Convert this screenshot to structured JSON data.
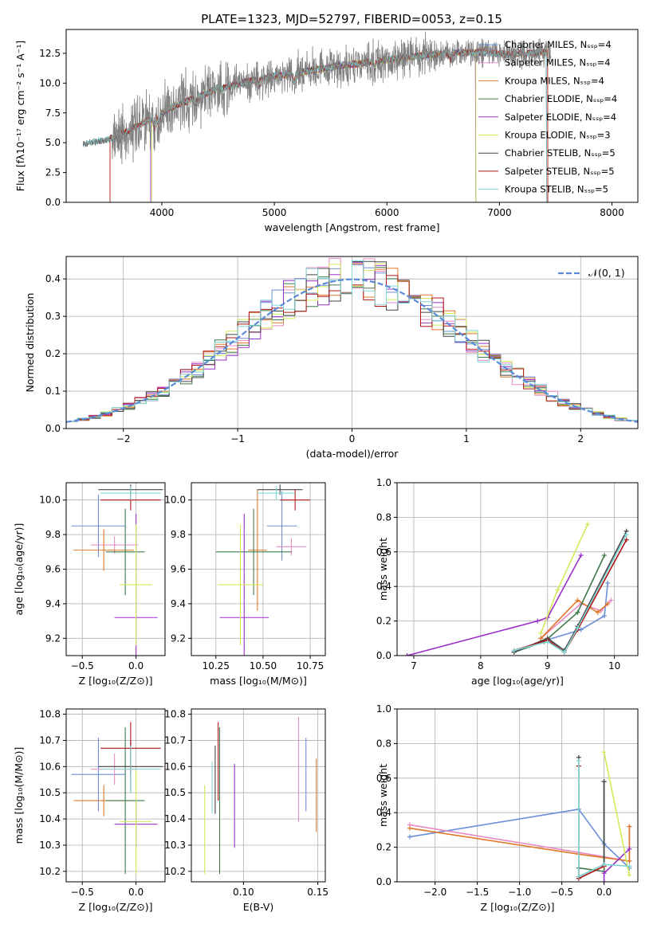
{
  "title": "PLATE=1323, MJD=52797, FIBERID=0053, z=0.15",
  "colors": {
    "Chabrier MILES": "#6a8fd8",
    "Salpeter MILES": "#e78ac3",
    "Kroupa MILES": "#e0782a",
    "Chabrier ELODIE": "#3f7a4b",
    "Salpeter ELODIE": "#9b30c8",
    "Kroupa ELODIE": "#d4e95a",
    "Chabrier STELIB": "#444444",
    "Salpeter STELIB": "#b01515",
    "Kroupa STELIB": "#7fd6d6",
    "data": "#808080",
    "gauss": "#5b8bd8"
  },
  "chart_data": [
    {
      "id": "spectrum",
      "type": "line",
      "xlabel": "wavelength [Angstrom, rest frame]",
      "ylabel": "Flux [fλ10⁻¹⁷ erg cm⁻² s⁻¹ A⁻¹]",
      "xlim": [
        3150,
        8230
      ],
      "ylim": [
        0,
        14.5
      ],
      "xticks": [
        "4000",
        "5000",
        "6000",
        "7000",
        "8000"
      ],
      "yticks": [
        "0.0",
        "2.5",
        "5.0",
        "7.5",
        "10.0",
        "12.5"
      ],
      "legend": [
        "Chabrier MILES, Nₛₛₚ=4",
        "Salpeter MILES, Nₛₛₚ=4",
        "Kroupa MILES, Nₛₛₚ=4",
        "Chabrier ELODIE, Nₛₛₚ=4",
        "Salpeter ELODIE, Nₛₛₚ=4",
        "Kroupa ELODIE, Nₛₛₚ=3",
        "Chabrier STELIB, Nₛₛₚ=5",
        "Salpeter STELIB, Nₛₛₚ=5",
        "Kroupa STELIB, Nₛₛₚ=5"
      ],
      "legend_placement": "upper right",
      "model_keypoints": [
        [
          3300,
          4.9
        ],
        [
          3500,
          5.2
        ],
        [
          3700,
          6.0
        ],
        [
          3900,
          7.0
        ],
        [
          4100,
          8.0
        ],
        [
          4400,
          9.2
        ],
        [
          4700,
          10.0
        ],
        [
          5000,
          10.6
        ],
        [
          5300,
          11.0
        ],
        [
          5600,
          11.5
        ],
        [
          5900,
          11.8
        ],
        [
          6200,
          12.2
        ],
        [
          6500,
          12.5
        ],
        [
          6800,
          12.6
        ],
        [
          7100,
          12.4
        ],
        [
          7400,
          12.6
        ]
      ]
    },
    {
      "id": "residuals",
      "type": "line",
      "xlabel": "(data-model)/error",
      "ylabel": "Normed distribution",
      "xlim": [
        -2.5,
        2.5
      ],
      "ylim": [
        0,
        0.46
      ],
      "xticks": [
        "−2",
        "−1",
        "0",
        "1",
        "2"
      ],
      "yticks": [
        "0.0",
        "0.1",
        "0.2",
        "0.3",
        "0.4"
      ],
      "legend": [
        "𝒩(0, 1)"
      ],
      "legend_placement": "upper right",
      "grid": true
    },
    {
      "id": "age_vs_Z",
      "type": "scatter",
      "xlabel": "Z [log₁₀(Z/Z⊙)]",
      "ylabel": "age  [log₁₀(age/yr)]",
      "xlim": [
        -0.65,
        0.27
      ],
      "ylim": [
        9.1,
        10.1
      ],
      "xticks": [
        "−0.5",
        "0.0"
      ],
      "yticks": [
        "9.2",
        "9.4",
        "9.6",
        "9.8",
        "10.0"
      ],
      "grid": true,
      "points": [
        {
          "m": "Chabrier MILES",
          "x": -0.35,
          "y": 9.85,
          "xerr": 0.25,
          "yerr": 0.18
        },
        {
          "m": "Salpeter MILES",
          "x": -0.2,
          "y": 9.74,
          "xerr": 0.22,
          "yerr": 0.05
        },
        {
          "m": "Kroupa MILES",
          "x": -0.3,
          "y": 9.71,
          "xerr": 0.28,
          "yerr": 0.12
        },
        {
          "m": "Chabrier ELODIE",
          "x": -0.1,
          "y": 9.7,
          "xerr": 0.18,
          "yerr": 0.25
        },
        {
          "m": "Salpeter ELODIE",
          "x": 0.0,
          "y": 9.32,
          "xerr": 0.2,
          "yerr": 0.6
        },
        {
          "m": "Kroupa ELODIE",
          "x": 0.0,
          "y": 9.51,
          "xerr": 0.15,
          "yerr": 0.35
        },
        {
          "m": "Chabrier STELIB",
          "x": -0.05,
          "y": 10.06,
          "xerr": 0.3,
          "yerr": 0.03
        },
        {
          "m": "Salpeter STELIB",
          "x": -0.05,
          "y": 10.0,
          "xerr": 0.28,
          "yerr": 0.06
        },
        {
          "m": "Kroupa STELIB",
          "x": -0.05,
          "y": 10.04,
          "xerr": 0.28,
          "yerr": 0.04
        }
      ]
    },
    {
      "id": "age_vs_mass",
      "type": "scatter",
      "xlabel": "mass [log₁₀(M/M⊙)]",
      "xlim": [
        10.12,
        10.83
      ],
      "ylim": [
        9.1,
        10.1
      ],
      "xticks": [
        "10.25",
        "10.50",
        "10.75"
      ],
      "yticks": [
        "9.2",
        "9.4",
        "9.6",
        "9.8",
        "10.0"
      ],
      "grid": true,
      "points": [
        {
          "m": "Chabrier MILES",
          "x": 10.6,
          "y": 9.85,
          "xerr": 0.08,
          "yerr": 0.2
        },
        {
          "m": "Salpeter MILES",
          "x": 10.65,
          "y": 9.73,
          "xerr": 0.08,
          "yerr": 0.05
        },
        {
          "m": "Kroupa MILES",
          "x": 10.47,
          "y": 9.71,
          "xerr": 0.05,
          "yerr": 0.35
        },
        {
          "m": "Chabrier ELODIE",
          "x": 10.45,
          "y": 9.7,
          "xerr": 0.2,
          "yerr": 0.25
        },
        {
          "m": "Salpeter ELODIE",
          "x": 10.4,
          "y": 9.32,
          "xerr": 0.13,
          "yerr": 0.6
        },
        {
          "m": "Kroupa ELODIE",
          "x": 10.38,
          "y": 9.51,
          "xerr": 0.12,
          "yerr": 0.35
        },
        {
          "m": "Chabrier STELIB",
          "x": 10.59,
          "y": 10.06,
          "xerr": 0.12,
          "yerr": 0.03
        },
        {
          "m": "Salpeter STELIB",
          "x": 10.67,
          "y": 10.0,
          "xerr": 0.08,
          "yerr": 0.06
        },
        {
          "m": "Kroupa STELIB",
          "x": 10.57,
          "y": 10.04,
          "xerr": 0.1,
          "yerr": 0.04
        }
      ]
    },
    {
      "id": "weight_vs_age",
      "type": "line",
      "xlabel": "age  [log₁₀(age/yr)]",
      "ylabel": "mass weight",
      "xlim": [
        6.75,
        10.35
      ],
      "ylim": [
        0,
        1.0
      ],
      "xticks": [
        "7",
        "8",
        "9",
        "10"
      ],
      "yticks": [
        "0.0",
        "0.2",
        "0.4",
        "0.6",
        "0.8",
        "1.0"
      ],
      "grid": true,
      "series": [
        {
          "m": "Chabrier MILES",
          "x": [
            8.9,
            9.5,
            9.85,
            9.9
          ],
          "y": [
            0.08,
            0.15,
            0.23,
            0.42
          ]
        },
        {
          "m": "Salpeter MILES",
          "x": [
            8.9,
            9.5,
            9.8,
            9.95
          ],
          "y": [
            0.1,
            0.3,
            0.26,
            0.32
          ]
        },
        {
          "m": "Kroupa MILES",
          "x": [
            8.9,
            9.45,
            9.75,
            9.9
          ],
          "y": [
            0.1,
            0.32,
            0.25,
            0.3
          ]
        },
        {
          "m": "Chabrier ELODIE",
          "x": [
            8.5,
            8.95,
            9.45,
            9.85
          ],
          "y": [
            0.02,
            0.08,
            0.25,
            0.58
          ]
        },
        {
          "m": "Salpeter ELODIE",
          "x": [
            6.9,
            8.85,
            9.0,
            9.5
          ],
          "y": [
            0.0,
            0.2,
            0.22,
            0.58
          ]
        },
        {
          "m": "Kroupa ELODIE",
          "x": [
            8.9,
            9.15,
            9.6
          ],
          "y": [
            0.13,
            0.38,
            0.76
          ]
        },
        {
          "m": "Chabrier STELIB",
          "x": [
            8.5,
            9.0,
            9.25,
            9.45,
            10.18
          ],
          "y": [
            0.02,
            0.1,
            0.03,
            0.17,
            0.72
          ]
        },
        {
          "m": "Salpeter STELIB",
          "x": [
            8.5,
            9.0,
            9.25,
            9.45,
            10.18
          ],
          "y": [
            0.03,
            0.09,
            0.02,
            0.15,
            0.67
          ]
        },
        {
          "m": "Kroupa STELIB",
          "x": [
            8.5,
            9.0,
            9.25,
            9.45,
            10.18
          ],
          "y": [
            0.03,
            0.08,
            0.02,
            0.16,
            0.7
          ]
        }
      ]
    },
    {
      "id": "mass_vs_Z",
      "type": "scatter",
      "xlabel": "Z [log₁₀(Z/Z⊙)]",
      "ylabel": "mass [log₁₀(M/M⊙)]",
      "xlim": [
        -0.65,
        0.27
      ],
      "ylim": [
        10.16,
        10.82
      ],
      "xticks": [
        "−0.5",
        "0.0"
      ],
      "yticks": [
        "10.2",
        "10.3",
        "10.4",
        "10.5",
        "10.6",
        "10.7",
        "10.8"
      ],
      "grid": true,
      "points": [
        {
          "m": "Chabrier MILES",
          "x": -0.35,
          "y": 10.57,
          "xerr": 0.25,
          "yerr": 0.14
        },
        {
          "m": "Salpeter MILES",
          "x": -0.2,
          "y": 10.59,
          "xerr": 0.22,
          "yerr": 0.06
        },
        {
          "m": "Kroupa MILES",
          "x": -0.3,
          "y": 10.47,
          "xerr": 0.28,
          "yerr": 0.06
        },
        {
          "m": "Chabrier ELODIE",
          "x": -0.1,
          "y": 10.47,
          "xerr": 0.18,
          "yerr": 0.28
        },
        {
          "m": "Salpeter ELODIE",
          "x": 0.0,
          "y": 10.38,
          "xerr": 0.2,
          "yerr": 0.09
        },
        {
          "m": "Kroupa ELODIE",
          "x": 0.0,
          "y": 10.39,
          "xerr": 0.15,
          "yerr": 0.2
        },
        {
          "m": "Chabrier STELIB",
          "x": -0.05,
          "y": 10.6,
          "xerr": 0.3,
          "yerr": 0.1
        },
        {
          "m": "Salpeter STELIB",
          "x": -0.05,
          "y": 10.67,
          "xerr": 0.28,
          "yerr": 0.1
        },
        {
          "m": "Kroupa STELIB",
          "x": -0.05,
          "y": 10.59,
          "xerr": 0.28,
          "yerr": 0.09
        }
      ]
    },
    {
      "id": "mass_vs_ebv",
      "type": "scatter",
      "xlabel": "E(B-V)",
      "xlim": [
        0.065,
        0.155
      ],
      "ylim": [
        10.16,
        10.82
      ],
      "xticks": [
        "0.10",
        "0.15"
      ],
      "yticks": [
        "10.2",
        "10.3",
        "10.4",
        "10.5",
        "10.6",
        "10.7",
        "10.8"
      ],
      "grid": true,
      "points": [
        {
          "m": "Chabrier MILES",
          "x": 0.142,
          "y": 10.57,
          "xerr": 0,
          "yerr": 0.14
        },
        {
          "m": "Salpeter MILES",
          "x": 0.137,
          "y": 10.59,
          "xerr": 0,
          "yerr": 0.2
        },
        {
          "m": "Kroupa MILES",
          "x": 0.149,
          "y": 10.49,
          "xerr": 0,
          "yerr": 0.14
        },
        {
          "m": "Chabrier ELODIE",
          "x": 0.084,
          "y": 10.47,
          "xerr": 0,
          "yerr": 0.28
        },
        {
          "m": "Salpeter ELODIE",
          "x": 0.094,
          "y": 10.45,
          "xerr": 0,
          "yerr": 0.16
        },
        {
          "m": "Kroupa ELODIE",
          "x": 0.074,
          "y": 10.36,
          "xerr": 0,
          "yerr": 0.17
        },
        {
          "m": "Chabrier STELIB",
          "x": 0.081,
          "y": 10.55,
          "xerr": 0,
          "yerr": 0.13
        },
        {
          "m": "Salpeter STELIB",
          "x": 0.083,
          "y": 10.62,
          "xerr": 0,
          "yerr": 0.15
        },
        {
          "m": "Kroupa STELIB",
          "x": 0.079,
          "y": 10.52,
          "xerr": 0,
          "yerr": 0.1
        }
      ]
    },
    {
      "id": "weight_vs_Z",
      "type": "line",
      "xlabel": "Z [log₁₀(Z/Z⊙)]",
      "ylabel": "mass weight",
      "xlim": [
        -2.45,
        0.4
      ],
      "ylim": [
        0,
        1.0
      ],
      "xticks": [
        "−2.0",
        "−1.5",
        "−1.0",
        "−0.5",
        "0.0"
      ],
      "yticks": [
        "0.0",
        "0.2",
        "0.4",
        "0.6",
        "0.8",
        "1.0"
      ],
      "grid": true,
      "series": [
        {
          "m": "Chabrier MILES",
          "x": [
            -2.3,
            -0.3,
            0.0,
            0.3
          ],
          "y": [
            0.26,
            0.42,
            0.22,
            0.08
          ]
        },
        {
          "m": "Salpeter MILES",
          "x": [
            -2.3,
            -0.3,
            0.3,
            0.3
          ],
          "y": [
            0.33,
            0.17,
            0.12,
            0.32
          ]
        },
        {
          "m": "Kroupa MILES",
          "x": [
            -2.3,
            -0.3,
            0.3,
            0.3
          ],
          "y": [
            0.31,
            0.16,
            0.12,
            0.32
          ]
        },
        {
          "m": "Chabrier ELODIE",
          "x": [
            -0.3,
            -0.3,
            0.0,
            0.0
          ],
          "y": [
            0.02,
            0.08,
            0.06,
            0.58
          ]
        },
        {
          "m": "Salpeter ELODIE",
          "x": [
            0.0,
            0.0,
            0.3
          ],
          "y": [
            0.0,
            0.05,
            0.19
          ]
        },
        {
          "m": "Kroupa ELODIE",
          "x": [
            0.0,
            0.3
          ],
          "y": [
            0.75,
            0.04
          ]
        },
        {
          "m": "Chabrier STELIB",
          "x": [
            -0.3,
            -0.3,
            0.0,
            0.0
          ],
          "y": [
            0.72,
            0.03,
            0.1,
            0.58
          ]
        },
        {
          "m": "Salpeter STELIB",
          "x": [
            -0.3,
            -0.3,
            0.0
          ],
          "y": [
            0.67,
            0.02,
            0.09
          ]
        },
        {
          "m": "Kroupa STELIB",
          "x": [
            -0.3,
            -0.3,
            0.0,
            0.3
          ],
          "y": [
            0.7,
            0.03,
            0.1,
            0.09
          ]
        }
      ]
    }
  ]
}
